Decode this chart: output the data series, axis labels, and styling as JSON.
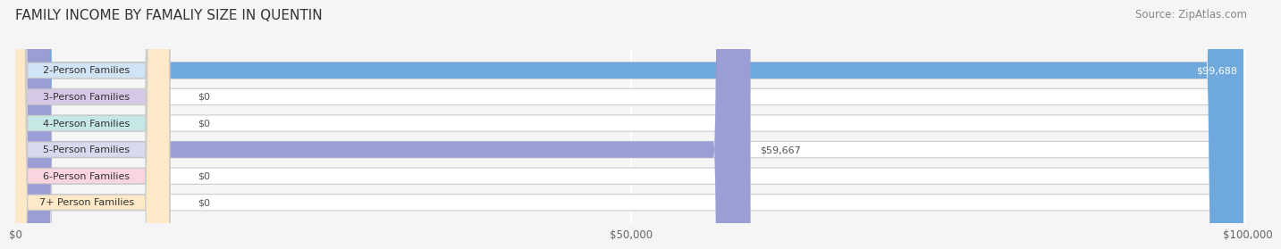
{
  "title": "FAMILY INCOME BY FAMALIY SIZE IN QUENTIN",
  "source": "Source: ZipAtlas.com",
  "categories": [
    "2-Person Families",
    "3-Person Families",
    "4-Person Families",
    "5-Person Families",
    "6-Person Families",
    "7+ Person Families"
  ],
  "values": [
    99688,
    0,
    0,
    59667,
    0,
    0
  ],
  "bar_colors": [
    "#6fa8dc",
    "#9e7bb5",
    "#6dbfb8",
    "#9b9ed4",
    "#f4a0b5",
    "#f9c98e"
  ],
  "label_bg_colors": [
    "#d0e4f5",
    "#d8c8e8",
    "#c5e8e6",
    "#d8d9ef",
    "#fad4de",
    "#fde8c8"
  ],
  "xlim": [
    0,
    100000
  ],
  "xticks": [
    0,
    50000,
    100000
  ],
  "xtick_labels": [
    "$0",
    "$50,000",
    "$100,000"
  ],
  "bar_height": 0.62,
  "background_color": "#f5f5f5",
  "grid_color": "#ffffff",
  "title_fontsize": 11,
  "source_fontsize": 8.5,
  "label_fontsize": 8,
  "value_fontsize": 8
}
